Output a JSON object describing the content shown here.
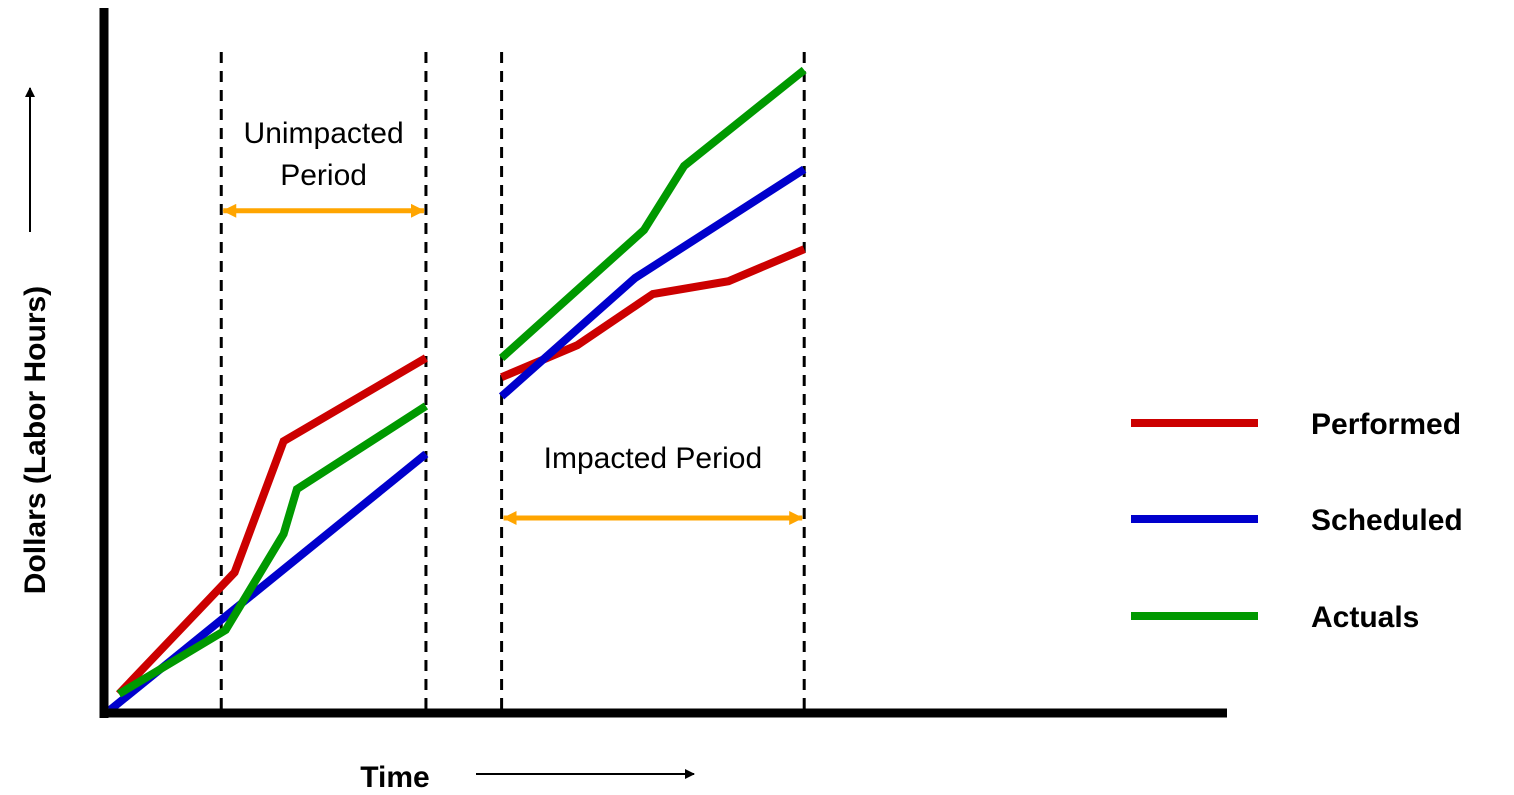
{
  "chart_data": {
    "type": "line",
    "title": "",
    "xlabel": "Time",
    "ylabel": "Dollars (Labor Hours)",
    "xlim": [
      0,
      100
    ],
    "ylim": [
      0,
      100
    ],
    "grid": false,
    "legend_position": "right",
    "series": [
      {
        "name": "Performed",
        "color": "#cc0000",
        "segments": [
          [
            [
              1.0,
              2.5
            ],
            [
              14.0,
              21.5
            ],
            [
              19.5,
              42.0
            ],
            [
              35.5,
              55.0
            ]
          ],
          [
            [
              44.0,
              52.0
            ],
            [
              52.5,
              57.0
            ],
            [
              61.0,
              65.0
            ],
            [
              69.5,
              67.0
            ],
            [
              78.0,
              72.0
            ]
          ]
        ]
      },
      {
        "name": "Scheduled",
        "color": "#0000cc",
        "segments": [
          [
            [
              0.0,
              0.0
            ],
            [
              35.5,
              40.0
            ]
          ],
          [
            [
              44.0,
              49.0
            ],
            [
              59.0,
              67.5
            ],
            [
              78.0,
              84.5
            ]
          ]
        ]
      },
      {
        "name": "Actuals",
        "color": "#009900",
        "segments": [
          [
            [
              1.0,
              2.5
            ],
            [
              13.0,
              12.5
            ],
            [
              19.5,
              27.5
            ],
            [
              21.0,
              34.5
            ],
            [
              35.5,
              47.5
            ]
          ],
          [
            [
              44.0,
              55.0
            ],
            [
              52.0,
              65.0
            ],
            [
              60.0,
              75.0
            ],
            [
              64.5,
              85.0
            ],
            [
              78.0,
              100.0
            ]
          ]
        ]
      }
    ],
    "annotations": [
      {
        "type": "vline",
        "x": 12.5,
        "style": "dashed"
      },
      {
        "type": "vline",
        "x": 35.5,
        "style": "dashed"
      },
      {
        "type": "vline",
        "x": 44.0,
        "style": "dashed"
      },
      {
        "type": "vline",
        "x": 78.0,
        "style": "dashed"
      },
      {
        "type": "span",
        "name": "unimpacted",
        "x": [
          12.5,
          35.5
        ],
        "y": 78.0,
        "color": "#ffa500",
        "label_lines": [
          "Unimpacted",
          "Period"
        ]
      },
      {
        "type": "span",
        "name": "impacted",
        "x": [
          44.0,
          78.0
        ],
        "y": 30.0,
        "color": "#ffa500",
        "label_lines": [
          "Impacted Period"
        ]
      }
    ]
  }
}
